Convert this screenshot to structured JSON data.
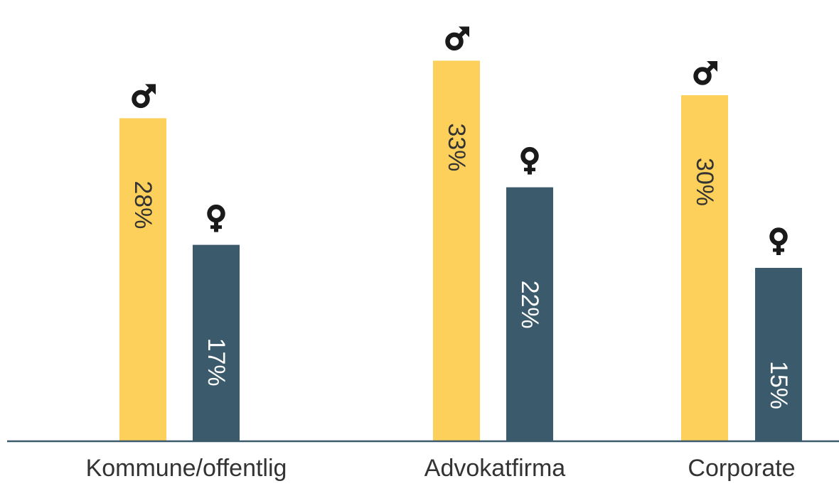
{
  "chart_data": {
    "type": "bar",
    "categories": [
      "Kommune/offentlig",
      "Advokatfirma",
      "Corporate"
    ],
    "series": [
      {
        "symbol": "♂",
        "icon": "male-symbol-icon",
        "color": "#FDD05B",
        "label_color": "#333333",
        "values": [
          28,
          33,
          30
        ],
        "labels": [
          "28%",
          "33%",
          "30%"
        ]
      },
      {
        "symbol": "♀",
        "icon": "female-symbol-icon",
        "color": "#3B5A6B",
        "label_color": "#ffffff",
        "values": [
          17,
          22,
          15
        ],
        "labels": [
          "17%",
          "22%",
          "15%"
        ]
      }
    ],
    "ylim": [
      0,
      35
    ],
    "grid": false,
    "legend": "none",
    "axis_color": "#3B5A6B"
  }
}
